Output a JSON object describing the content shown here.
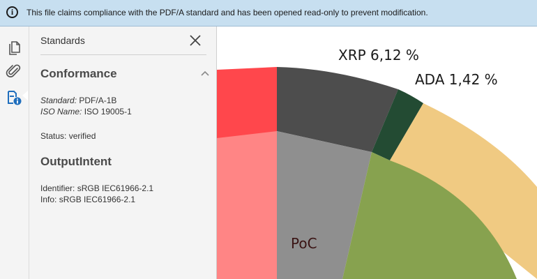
{
  "infobar": {
    "icon": "info-icon",
    "message": "This file claims compliance with the PDF/A standard and has been opened read-only to prevent modification."
  },
  "toolbar": {
    "items": [
      {
        "name": "pages-icon"
      },
      {
        "name": "attachment-icon"
      },
      {
        "name": "standards-icon",
        "active": true
      }
    ]
  },
  "panel": {
    "title": "Standards",
    "close_icon": "close-icon",
    "conformance": {
      "heading": "Conformance",
      "standard_label": "Standard:",
      "standard_value": "PDF/A-1B",
      "iso_label": "ISO Name:",
      "iso_value": "ISO 19005-1",
      "status_label": "Status:",
      "status_value": "verified"
    },
    "output_intent": {
      "heading": "OutputIntent",
      "identifier_label": "Identifier:",
      "identifier_value": "sRGB IEC61966-2.1",
      "info_label": "Info:",
      "info_value": "sRGB IEC61966-2.1"
    }
  },
  "document": {
    "labels": {
      "xrp": "XRP 6,12 %",
      "ada": "ADA 1,42 %",
      "poc": "PoC"
    },
    "colors": {
      "red_outer": "#ff474c",
      "red_inner": "#ff8585",
      "dark_outer": "#4d4d4d",
      "grey_inner": "#8f8f8f",
      "dark_green": "#234b33",
      "sand": "#f0ca82",
      "olive": "#87a24f",
      "accent": "#1f6ebd"
    }
  }
}
